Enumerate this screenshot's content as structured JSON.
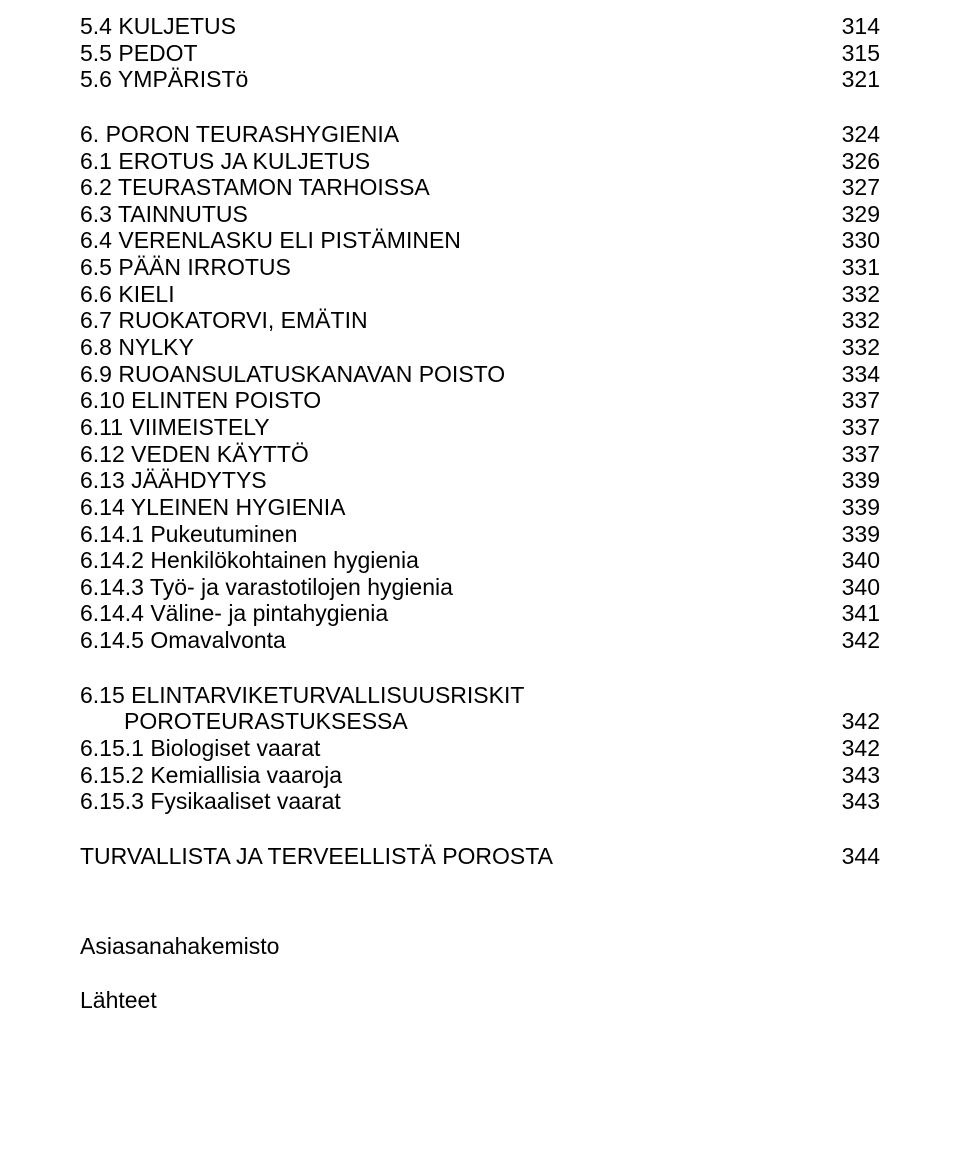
{
  "toc": {
    "groups": [
      {
        "items": [
          {
            "label": "5.4 KULJETUS",
            "page": "314",
            "indent": 0
          },
          {
            "label": "5.5 PEDOT",
            "page": "315",
            "indent": 0
          },
          {
            "label": "5.6 YMPÄRISTö",
            "page": "321",
            "indent": 0
          }
        ]
      },
      {
        "items": [
          {
            "label": "6. PORON TEURASHYGIENIA",
            "page": "324",
            "indent": 0
          },
          {
            "label": "6.1 EROTUS JA KULJETUS",
            "page": "326",
            "indent": 0
          },
          {
            "label": "6.2 TEURASTAMON TARHOISSA",
            "page": "327",
            "indent": 0
          },
          {
            "label": "6.3 TAINNUTUS",
            "page": "329",
            "indent": 0
          },
          {
            "label": "6.4 VERENLASKU ELI PISTÄMINEN",
            "page": "330",
            "indent": 0
          },
          {
            "label": "6.5 PÄÄN IRROTUS",
            "page": "331",
            "indent": 0
          },
          {
            "label": "6.6 KIELI",
            "page": "332",
            "indent": 0
          },
          {
            "label": "6.7 RUOKATORVI, EMÄTIN",
            "page": "332",
            "indent": 0
          },
          {
            "label": "6.8 NYLKY",
            "page": "332",
            "indent": 0
          },
          {
            "label": "6.9 RUOANSULATUSKANAVAN POISTO",
            "page": "334",
            "indent": 0
          },
          {
            "label": "6.10 ELINTEN POISTO",
            "page": "337",
            "indent": 0
          },
          {
            "label": "6.11 VIIMEISTELY",
            "page": "337",
            "indent": 0
          },
          {
            "label": "6.12 VEDEN KÄYTTÖ",
            "page": "337",
            "indent": 0
          },
          {
            "label": "6.13 JÄÄHDYTYS",
            "page": "339",
            "indent": 0
          },
          {
            "label": "6.14 YLEINEN HYGIENIA",
            "page": "339",
            "indent": 0
          },
          {
            "label": "6.14.1 Pukeutuminen",
            "page": "339",
            "indent": 0
          },
          {
            "label": "6.14.2 Henkilökohtainen hygienia",
            "page": "340",
            "indent": 0
          },
          {
            "label": "6.14.3 Työ- ja varastotilojen hygienia",
            "page": "340",
            "indent": 0
          },
          {
            "label": "6.14.4 Väline- ja pintahygienia",
            "page": "341",
            "indent": 0
          },
          {
            "label": "6.14.5 Omavalvonta",
            "page": "342",
            "indent": 0
          }
        ]
      },
      {
        "items": [
          {
            "label": "6.15 ELINTARVIKETURVALLISUUSRISKIT",
            "page": "",
            "indent": 0
          },
          {
            "label": "POROTEURASTUKSESSA",
            "page": "342",
            "indent": 1
          },
          {
            "label": "6.15.1 Biologiset vaarat",
            "page": "342",
            "indent": 0
          },
          {
            "label": "6.15.2 Kemiallisia vaaroja",
            "page": "343",
            "indent": 0
          },
          {
            "label": "6.15.3 Fysikaaliset vaarat",
            "page": "343",
            "indent": 0
          }
        ]
      },
      {
        "items": [
          {
            "label": "TURVALLISTA JA TERVEELLISTÄ POROSTA",
            "page": "344",
            "indent": 0
          }
        ]
      }
    ]
  },
  "bottom": {
    "index_label": "Asiasanahakemisto",
    "sources_label": "Lähteet"
  }
}
